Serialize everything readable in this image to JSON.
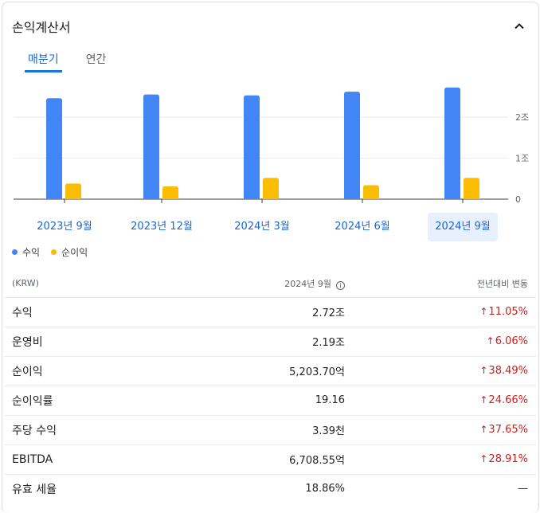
{
  "card": {
    "title": "손익계산서"
  },
  "tabs": [
    {
      "label": "매분기",
      "active": true
    },
    {
      "label": "연간",
      "active": false
    }
  ],
  "chart_data": {
    "type": "bar",
    "categories": [
      "2023년 9월",
      "2023년 12월",
      "2024년 3월",
      "2024년 6월",
      "2024년 9월"
    ],
    "selected_category": "2024년 9월",
    "series": [
      {
        "name": "수익",
        "color": "#4285f4",
        "values": [
          2.46,
          2.55,
          2.53,
          2.62,
          2.72
        ]
      },
      {
        "name": "순이익",
        "color": "#fbbc04",
        "values": [
          0.38,
          0.31,
          0.52,
          0.34,
          0.52
        ]
      }
    ],
    "y_ticks": [
      {
        "value": 0,
        "label": "0"
      },
      {
        "value": 1,
        "label": "1조"
      },
      {
        "value": 2,
        "label": "2조"
      }
    ],
    "ylim": [
      0,
      2.8
    ],
    "grid": true,
    "legend_position": "bottom-left"
  },
  "table": {
    "headers": {
      "label": "(KRW)",
      "period": "2024년 9월",
      "change": "전년대비 변동"
    },
    "rows": [
      {
        "label": "수익",
        "value": "2.72조",
        "change": "11.05%",
        "direction": "up"
      },
      {
        "label": "운영비",
        "value": "2.19조",
        "change": "6.06%",
        "direction": "up"
      },
      {
        "label": "순이익",
        "value": "5,203.70억",
        "change": "38.49%",
        "direction": "up"
      },
      {
        "label": "순이익률",
        "value": "19.16",
        "change": "24.66%",
        "direction": "up"
      },
      {
        "label": "주당 수익",
        "value": "3.39천",
        "change": "37.65%",
        "direction": "up"
      },
      {
        "label": "EBITDA",
        "value": "6,708.55억",
        "change": "28.91%",
        "direction": "up"
      },
      {
        "label": "유효 세율",
        "value": "18.86%",
        "change": "—",
        "direction": "none"
      }
    ]
  }
}
